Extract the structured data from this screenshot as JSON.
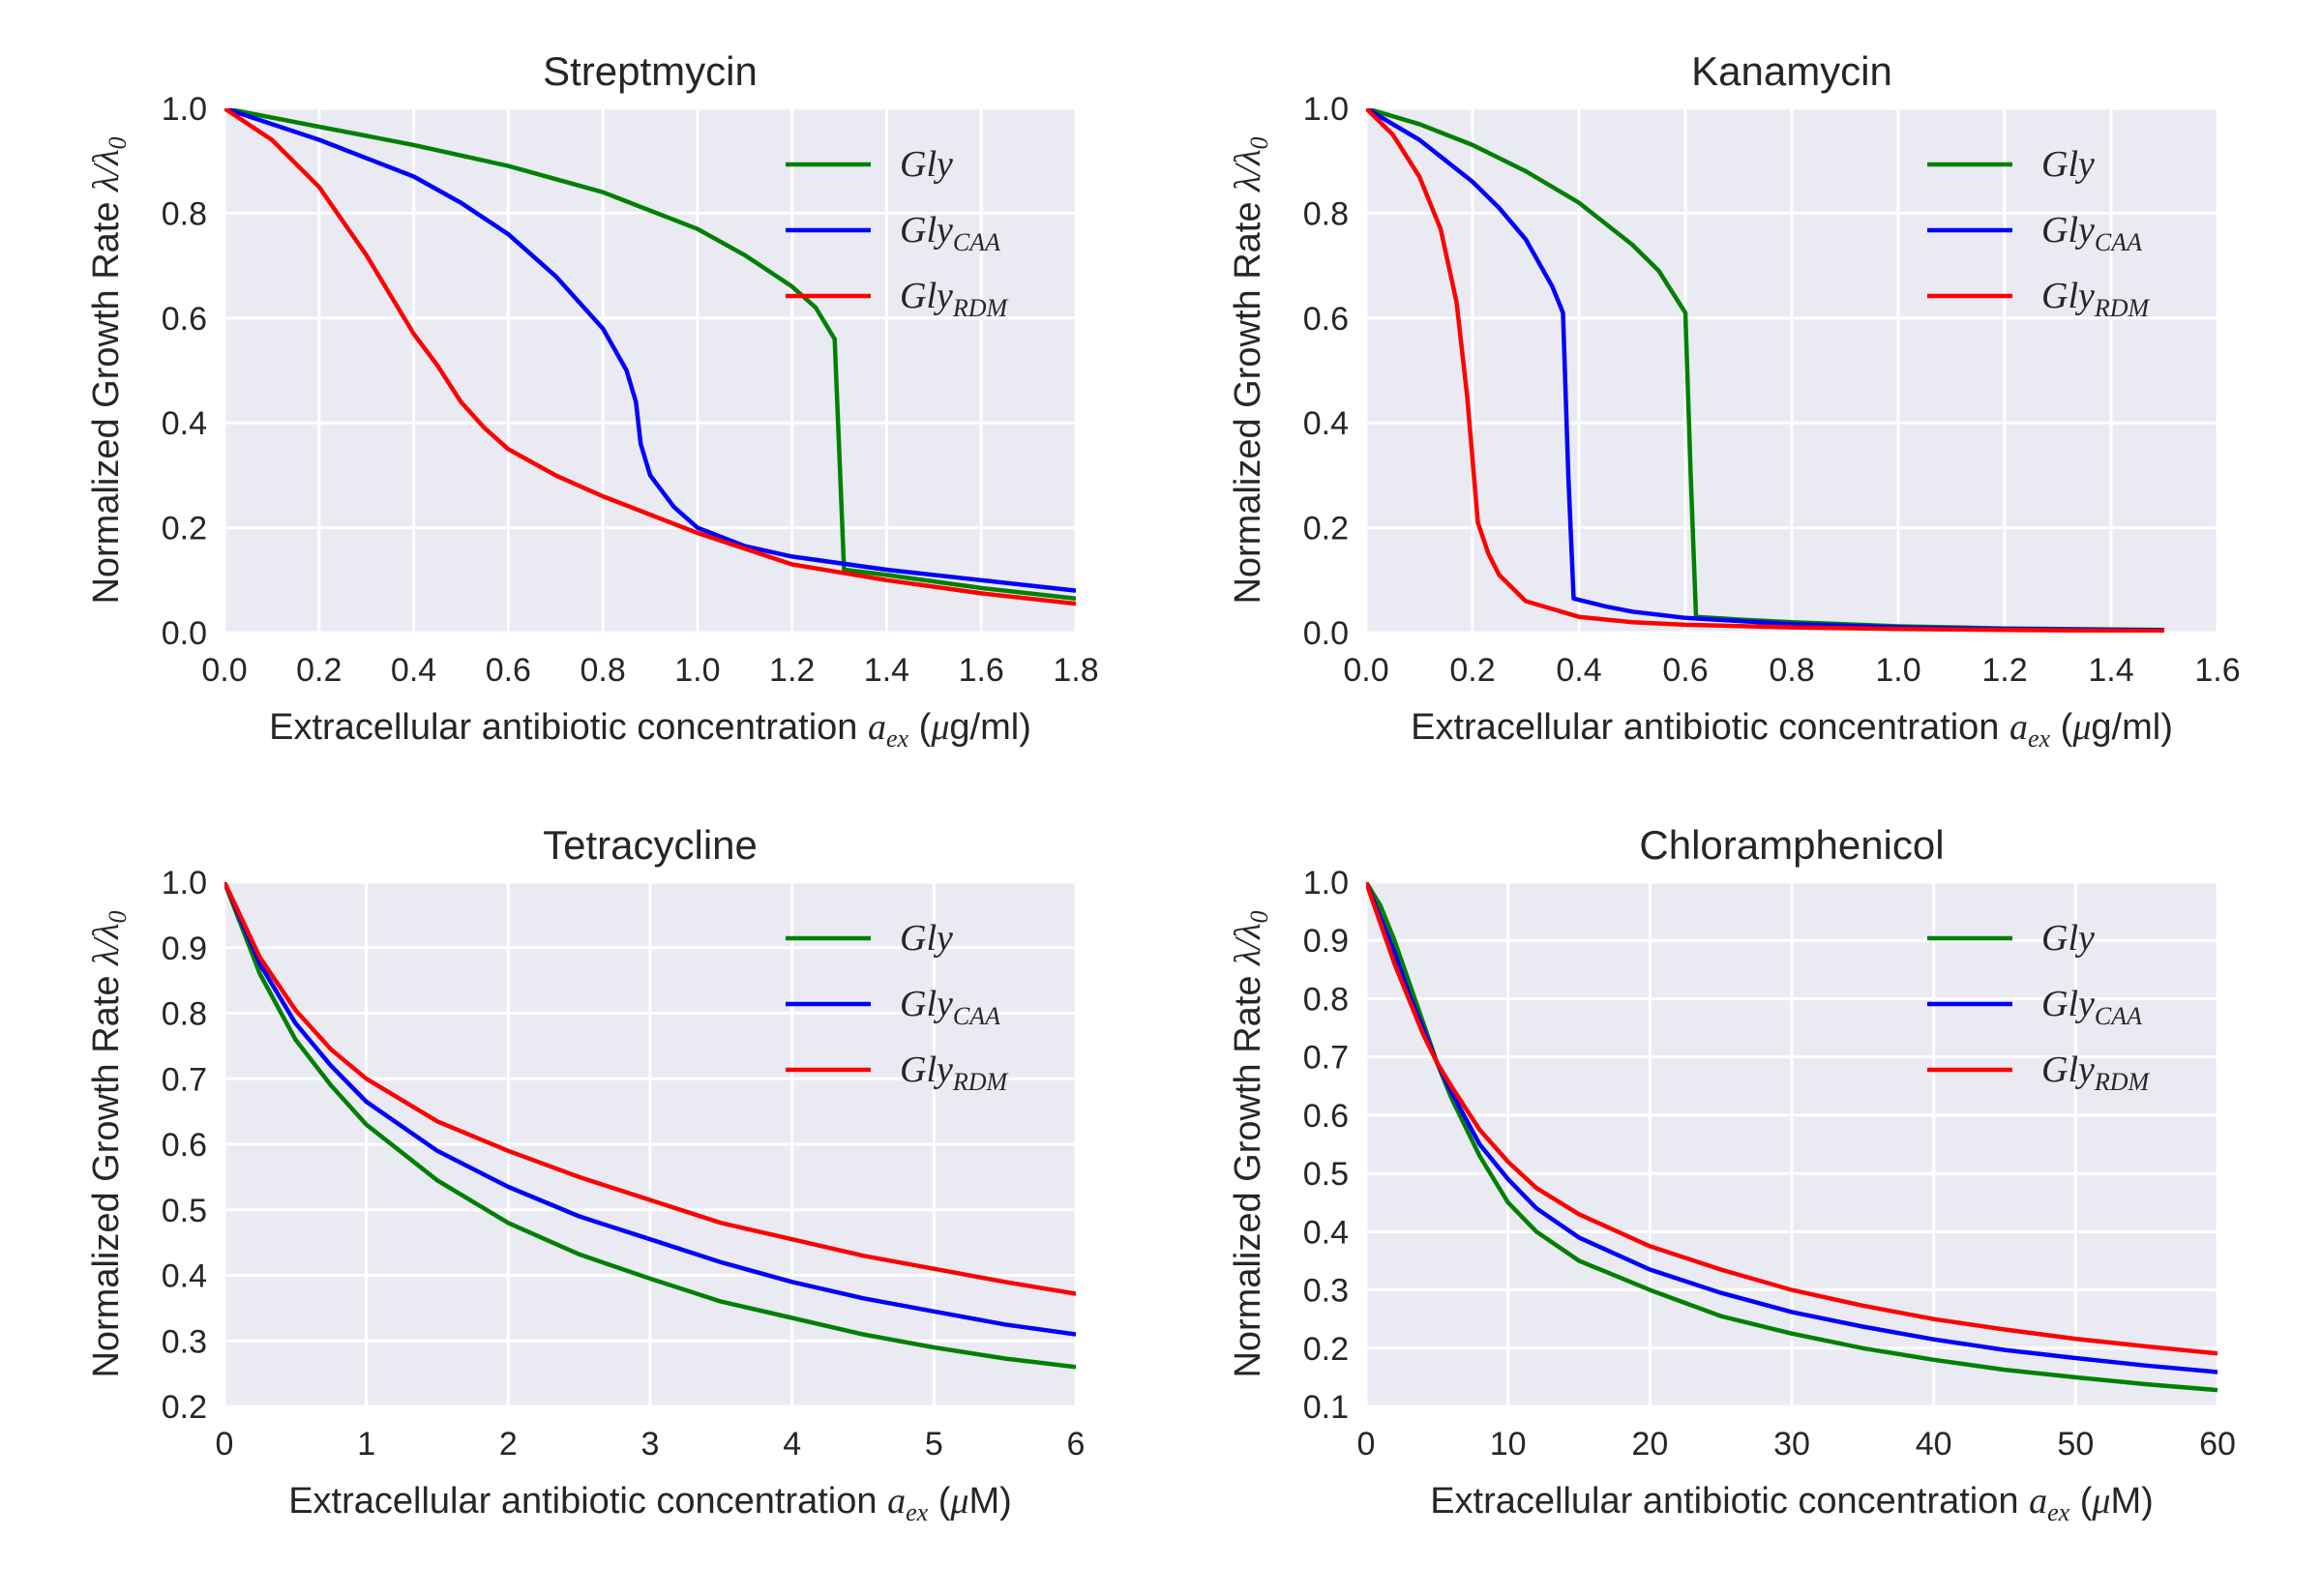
{
  "chart_data": [
    {
      "type": "line",
      "title": "Streptmycin",
      "xlabel": "Extracellular antibiotic concentration",
      "xlabel_symbol": "a",
      "xlabel_symbol_sub": "ex",
      "xlabel_unit_pre": "(",
      "xlabel_unit_mu": "μ",
      "xlabel_unit_post": "g/ml)",
      "ylabel": "Normalized Growth Rate",
      "ylabel_symbol": "λ/λ",
      "ylabel_symbol_sub": "0",
      "xlim": [
        0,
        1.8
      ],
      "ylim": [
        0,
        1.0
      ],
      "xticks": [
        "0.0",
        "0.2",
        "0.4",
        "0.6",
        "0.8",
        "1.0",
        "1.2",
        "1.4",
        "1.6",
        "1.8"
      ],
      "yticks": [
        "0.0",
        "0.2",
        "0.4",
        "0.6",
        "0.8",
        "1.0"
      ],
      "grid": true,
      "legend_placement": "top-right",
      "series": [
        {
          "name": "Gly",
          "name_sub": "",
          "color": "#008000",
          "x": [
            0,
            0.2,
            0.4,
            0.6,
            0.8,
            1.0,
            1.1,
            1.2,
            1.25,
            1.29,
            1.31,
            1.4,
            1.6,
            1.8
          ],
          "y": [
            1.0,
            0.965,
            0.93,
            0.89,
            0.84,
            0.77,
            0.72,
            0.66,
            0.62,
            0.56,
            0.12,
            0.11,
            0.085,
            0.065
          ]
        },
        {
          "name": "Gly",
          "name_sub": "CAA",
          "color": "#0000ff",
          "x": [
            0,
            0.2,
            0.4,
            0.5,
            0.6,
            0.7,
            0.8,
            0.85,
            0.87,
            0.88,
            0.9,
            0.95,
            1.0,
            1.1,
            1.2,
            1.4,
            1.6,
            1.8
          ],
          "y": [
            1.0,
            0.94,
            0.87,
            0.82,
            0.76,
            0.68,
            0.58,
            0.5,
            0.44,
            0.36,
            0.3,
            0.24,
            0.2,
            0.165,
            0.145,
            0.12,
            0.1,
            0.08
          ]
        },
        {
          "name": "Gly",
          "name_sub": "RDM",
          "color": "#ff0000",
          "x": [
            0,
            0.1,
            0.2,
            0.3,
            0.4,
            0.45,
            0.5,
            0.55,
            0.6,
            0.7,
            0.8,
            1.0,
            1.2,
            1.4,
            1.6,
            1.8
          ],
          "y": [
            1.0,
            0.94,
            0.85,
            0.72,
            0.57,
            0.51,
            0.44,
            0.39,
            0.35,
            0.3,
            0.26,
            0.19,
            0.13,
            0.1,
            0.075,
            0.055
          ]
        }
      ]
    },
    {
      "type": "line",
      "title": "Kanamycin",
      "xlabel": "Extracellular antibiotic concentration",
      "xlabel_symbol": "a",
      "xlabel_symbol_sub": "ex",
      "xlabel_unit_pre": "(",
      "xlabel_unit_mu": "μ",
      "xlabel_unit_post": "g/ml)",
      "ylabel": "Normalized Growth Rate",
      "ylabel_symbol": "λ/λ",
      "ylabel_symbol_sub": "0",
      "xlim": [
        0,
        1.6
      ],
      "ylim": [
        0,
        1.0
      ],
      "xticks": [
        "0.0",
        "0.2",
        "0.4",
        "0.6",
        "0.8",
        "1.0",
        "1.2",
        "1.4",
        "1.6"
      ],
      "yticks": [
        "0.0",
        "0.2",
        "0.4",
        "0.6",
        "0.8",
        "1.0"
      ],
      "grid": true,
      "legend_placement": "top-right",
      "series": [
        {
          "name": "Gly",
          "name_sub": "",
          "color": "#008000",
          "x": [
            0,
            0.1,
            0.2,
            0.3,
            0.4,
            0.5,
            0.55,
            0.6,
            0.61,
            0.62,
            0.7,
            0.8,
            1.0,
            1.2,
            1.5
          ],
          "y": [
            1.0,
            0.97,
            0.93,
            0.88,
            0.82,
            0.74,
            0.69,
            0.61,
            0.3,
            0.03,
            0.025,
            0.02,
            0.012,
            0.008,
            0.005
          ]
        },
        {
          "name": "Gly",
          "name_sub": "CAA",
          "color": "#0000ff",
          "x": [
            0,
            0.05,
            0.1,
            0.15,
            0.2,
            0.25,
            0.3,
            0.35,
            0.37,
            0.38,
            0.39,
            0.45,
            0.5,
            0.6,
            0.8,
            1.0,
            1.2,
            1.5
          ],
          "y": [
            1.0,
            0.97,
            0.94,
            0.9,
            0.86,
            0.81,
            0.75,
            0.66,
            0.61,
            0.3,
            0.065,
            0.05,
            0.04,
            0.028,
            0.016,
            0.01,
            0.007,
            0.004
          ]
        },
        {
          "name": "Gly",
          "name_sub": "RDM",
          "color": "#ff0000",
          "x": [
            0,
            0.05,
            0.1,
            0.14,
            0.17,
            0.19,
            0.2,
            0.21,
            0.23,
            0.25,
            0.3,
            0.4,
            0.5,
            0.6,
            0.8,
            1.0,
            1.2,
            1.5
          ],
          "y": [
            1.0,
            0.95,
            0.87,
            0.77,
            0.63,
            0.45,
            0.33,
            0.21,
            0.15,
            0.11,
            0.06,
            0.03,
            0.02,
            0.015,
            0.01,
            0.007,
            0.005,
            0.003
          ]
        }
      ]
    },
    {
      "type": "line",
      "title": "Tetracycline",
      "xlabel": "Extracellular antibiotic concentration",
      "xlabel_symbol": "a",
      "xlabel_symbol_sub": "ex",
      "xlabel_unit_pre": "(",
      "xlabel_unit_mu": "μ",
      "xlabel_unit_post": "M)",
      "ylabel": "Normalized Growth Rate",
      "ylabel_symbol": "λ/λ",
      "ylabel_symbol_sub": "0",
      "xlim": [
        0,
        6
      ],
      "ylim": [
        0.2,
        1.0
      ],
      "xticks": [
        "0",
        "1",
        "2",
        "3",
        "4",
        "5",
        "6"
      ],
      "yticks": [
        "0.2",
        "0.3",
        "0.4",
        "0.5",
        "0.6",
        "0.7",
        "0.8",
        "0.9",
        "1.0"
      ],
      "grid": true,
      "legend_placement": "top-right",
      "series": [
        {
          "name": "Gly",
          "name_sub": "",
          "color": "#008000",
          "x": [
            0,
            0.25,
            0.5,
            0.75,
            1,
            1.5,
            2,
            2.5,
            3,
            3.5,
            4,
            4.5,
            5,
            5.5,
            6
          ],
          "y": [
            1.0,
            0.86,
            0.76,
            0.69,
            0.63,
            0.545,
            0.48,
            0.432,
            0.395,
            0.36,
            0.335,
            0.31,
            0.29,
            0.273,
            0.26
          ]
        },
        {
          "name": "Gly",
          "name_sub": "CAA",
          "color": "#0000ff",
          "x": [
            0,
            0.25,
            0.5,
            0.75,
            1,
            1.5,
            2,
            2.5,
            3,
            3.5,
            4,
            4.5,
            5,
            5.5,
            6
          ],
          "y": [
            1.0,
            0.875,
            0.785,
            0.72,
            0.665,
            0.59,
            0.535,
            0.49,
            0.455,
            0.42,
            0.39,
            0.365,
            0.345,
            0.325,
            0.31
          ]
        },
        {
          "name": "Gly",
          "name_sub": "RDM",
          "color": "#ff0000",
          "x": [
            0,
            0.25,
            0.5,
            0.75,
            1,
            1.5,
            2,
            2.5,
            3,
            3.5,
            4,
            4.5,
            5,
            5.5,
            6
          ],
          "y": [
            1.0,
            0.885,
            0.805,
            0.745,
            0.7,
            0.635,
            0.59,
            0.55,
            0.515,
            0.48,
            0.455,
            0.43,
            0.41,
            0.39,
            0.372
          ]
        }
      ]
    },
    {
      "type": "line",
      "title": "Chloramphenicol",
      "xlabel": "Extracellular antibiotic concentration",
      "xlabel_symbol": "a",
      "xlabel_symbol_sub": "ex",
      "xlabel_unit_pre": "(",
      "xlabel_unit_mu": "μ",
      "xlabel_unit_post": "M)",
      "ylabel": "Normalized Growth Rate",
      "ylabel_symbol": "λ/λ",
      "ylabel_symbol_sub": "0",
      "xlim": [
        0,
        60
      ],
      "ylim": [
        0.1,
        1.0
      ],
      "xticks": [
        "0",
        "10",
        "20",
        "30",
        "40",
        "50",
        "60"
      ],
      "yticks": [
        "0.1",
        "0.2",
        "0.3",
        "0.4",
        "0.5",
        "0.6",
        "0.7",
        "0.8",
        "0.9",
        "1.0"
      ],
      "grid": true,
      "legend_placement": "top-right",
      "series": [
        {
          "name": "Gly",
          "name_sub": "",
          "color": "#008000",
          "x": [
            0,
            1,
            2,
            3,
            4,
            5,
            6,
            8,
            10,
            12,
            15,
            20,
            25,
            30,
            35,
            40,
            45,
            50,
            55,
            60
          ],
          "y": [
            1.0,
            0.96,
            0.9,
            0.83,
            0.76,
            0.69,
            0.63,
            0.53,
            0.45,
            0.4,
            0.35,
            0.3,
            0.255,
            0.225,
            0.2,
            0.18,
            0.163,
            0.15,
            0.138,
            0.128
          ]
        },
        {
          "name": "Gly",
          "name_sub": "CAA",
          "color": "#0000ff",
          "x": [
            0,
            1,
            2,
            3,
            4,
            5,
            6,
            8,
            10,
            12,
            15,
            20,
            25,
            30,
            35,
            40,
            45,
            50,
            55,
            60
          ],
          "y": [
            1.0,
            0.94,
            0.88,
            0.81,
            0.75,
            0.69,
            0.64,
            0.55,
            0.49,
            0.44,
            0.39,
            0.335,
            0.295,
            0.262,
            0.237,
            0.215,
            0.197,
            0.183,
            0.17,
            0.159
          ]
        },
        {
          "name": "Gly",
          "name_sub": "RDM",
          "color": "#ff0000",
          "x": [
            0,
            1,
            2,
            3,
            4,
            5,
            6,
            8,
            10,
            12,
            15,
            20,
            25,
            30,
            35,
            40,
            45,
            50,
            55,
            60
          ],
          "y": [
            1.0,
            0.93,
            0.86,
            0.8,
            0.74,
            0.69,
            0.65,
            0.575,
            0.52,
            0.475,
            0.43,
            0.375,
            0.335,
            0.3,
            0.273,
            0.25,
            0.232,
            0.216,
            0.203,
            0.191
          ]
        }
      ]
    }
  ]
}
